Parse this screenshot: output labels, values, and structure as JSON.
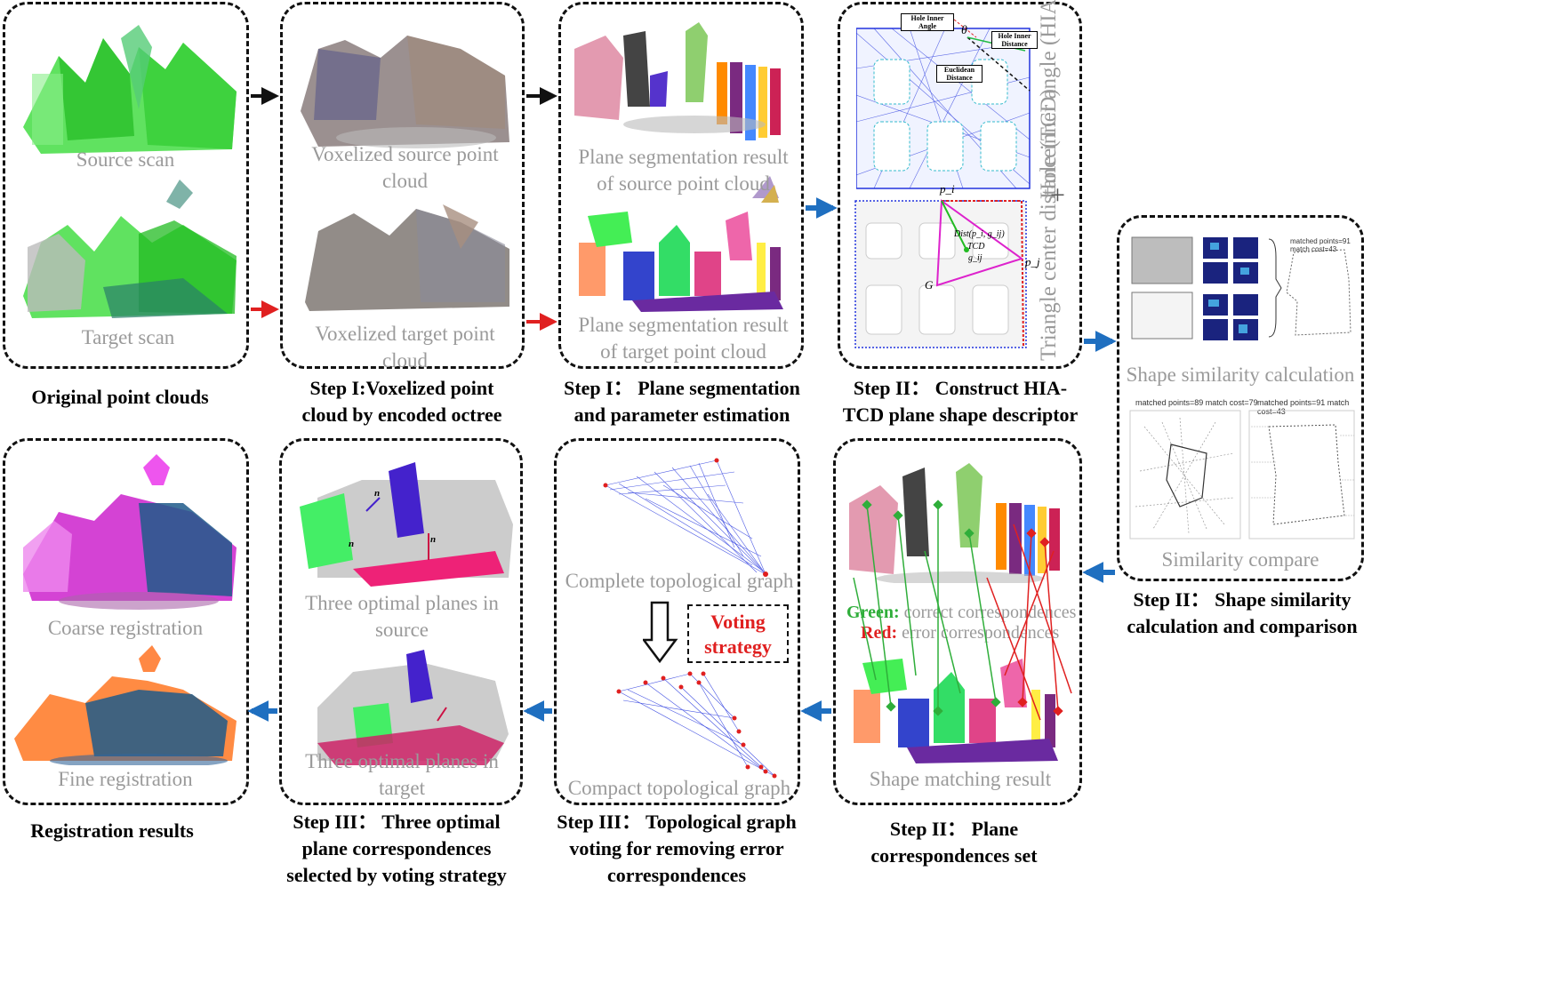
{
  "panels": {
    "original": {
      "caption_top": "Source scan",
      "caption_bottom": "Target scan",
      "title": "Original point clouds"
    },
    "voxel": {
      "caption_top": "Voxelized source point cloud",
      "caption_bottom": "Voxelized target point cloud",
      "title": "Step I:Voxelized point cloud by encoded octree"
    },
    "segmentation": {
      "caption_top": "Plane segmentation result of source point cloud",
      "caption_bottom": "Plane segmentation result of target point cloud",
      "title": "Step I： Plane segmentation and parameter estimation"
    },
    "descriptor": {
      "label_hia": "Hole inner angle (HIA)",
      "label_tcd": "Triangle center distance(TCD)",
      "plus": "+",
      "annot_hole_inner_angle": "Hole Inner Angle",
      "annot_hole_inner_distance": "Hole Inner Distance",
      "annot_euclidean": "Euclidean Distance",
      "annot_theta": "θ",
      "annot_pi": "p_i",
      "annot_pj": "p_j",
      "annot_dist": "Dist(p_i, g_ij)",
      "annot_tcd": "TCD",
      "annot_gij": "g_ij",
      "annot_g": "G",
      "title": "Step II： Construct HIA-TCD plane shape descriptor"
    },
    "similarity": {
      "caption_top": "Shape similarity calculation",
      "caption_bottom": "Similarity compare",
      "match_left": "matched points=89  match cost=79",
      "match_right": "matched points=91  match cost=43",
      "match_small": "matched points=91  match cost=43",
      "title": "Step II： Shape similarity calculation and comparison"
    },
    "correspondences": {
      "legend_green_key": "Green:",
      "legend_green_text": " correct correspondences",
      "legend_red_key": "Red:",
      "legend_red_text": " error correspondences",
      "caption": "Shape matching result",
      "title": "Step II： Plane correspondences set"
    },
    "graph": {
      "caption_top": "Complete topological graph",
      "caption_bottom": "Compact topological graph",
      "voting": "Voting strategy",
      "title": "Step III： Topological graph voting for removing error correspondences"
    },
    "optimal": {
      "caption_top": "Three optimal planes in source",
      "caption_bottom": "Three optimal planes in target",
      "title": "Step III： Three optimal plane correspondences selected by voting strategy"
    },
    "registration": {
      "caption_top": "Coarse registration",
      "caption_bottom": "Fine registration",
      "title": "Registration results"
    }
  },
  "colors": {
    "arrow_black": "#111111",
    "arrow_red": "#e02020",
    "arrow_blue": "#1f6fc0",
    "caption_gray": "#9a9a9a",
    "graph_blue": "#2233dd"
  }
}
